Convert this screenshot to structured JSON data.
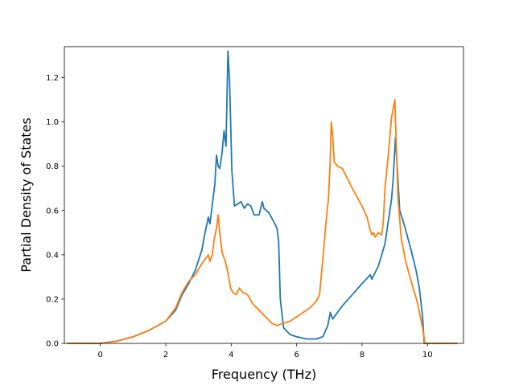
{
  "chart_data": {
    "type": "line",
    "title": "",
    "xlabel": "Frequency (THz)",
    "ylabel": "Partial Density of States",
    "xlim": [
      -1.1,
      11.1
    ],
    "ylim": [
      0,
      1.34
    ],
    "xticks": [
      0,
      2,
      4,
      6,
      8,
      10
    ],
    "xtick_labels": [
      "0",
      "2",
      "4",
      "6",
      "8",
      "10"
    ],
    "yticks": [
      0.0,
      0.2,
      0.4,
      0.6,
      0.8,
      1.0,
      1.2
    ],
    "ytick_labels": [
      "0.0",
      "0.2",
      "0.4",
      "0.6",
      "0.8",
      "1.0",
      "1.2"
    ],
    "grid": false,
    "legend": "none",
    "series": [
      {
        "color": "#1f77b4",
        "points": [
          [
            -1.0,
            0.0
          ],
          [
            0.0,
            0.0
          ],
          [
            0.5,
            0.01
          ],
          [
            1.0,
            0.03
          ],
          [
            1.5,
            0.06
          ],
          [
            2.0,
            0.1
          ],
          [
            2.3,
            0.15
          ],
          [
            2.5,
            0.22
          ],
          [
            2.7,
            0.27
          ],
          [
            2.9,
            0.33
          ],
          [
            3.1,
            0.42
          ],
          [
            3.2,
            0.5
          ],
          [
            3.3,
            0.57
          ],
          [
            3.35,
            0.54
          ],
          [
            3.45,
            0.66
          ],
          [
            3.5,
            0.72
          ],
          [
            3.55,
            0.85
          ],
          [
            3.6,
            0.8
          ],
          [
            3.65,
            0.79
          ],
          [
            3.72,
            0.86
          ],
          [
            3.78,
            0.96
          ],
          [
            3.84,
            0.89
          ],
          [
            3.9,
            1.32
          ],
          [
            3.95,
            1.18
          ],
          [
            4.02,
            0.78
          ],
          [
            4.1,
            0.62
          ],
          [
            4.2,
            0.63
          ],
          [
            4.3,
            0.64
          ],
          [
            4.4,
            0.61
          ],
          [
            4.5,
            0.63
          ],
          [
            4.6,
            0.62
          ],
          [
            4.7,
            0.58
          ],
          [
            4.85,
            0.58
          ],
          [
            4.95,
            0.64
          ],
          [
            5.0,
            0.61
          ],
          [
            5.15,
            0.59
          ],
          [
            5.3,
            0.55
          ],
          [
            5.4,
            0.52
          ],
          [
            5.45,
            0.46
          ],
          [
            5.5,
            0.2
          ],
          [
            5.6,
            0.07
          ],
          [
            5.8,
            0.04
          ],
          [
            6.0,
            0.03
          ],
          [
            6.3,
            0.02
          ],
          [
            6.6,
            0.02
          ],
          [
            6.8,
            0.03
          ],
          [
            6.95,
            0.08
          ],
          [
            7.03,
            0.14
          ],
          [
            7.1,
            0.11
          ],
          [
            7.2,
            0.13
          ],
          [
            7.4,
            0.17
          ],
          [
            7.7,
            0.22
          ],
          [
            8.0,
            0.27
          ],
          [
            8.25,
            0.31
          ],
          [
            8.3,
            0.29
          ],
          [
            8.4,
            0.32
          ],
          [
            8.5,
            0.35
          ],
          [
            8.6,
            0.4
          ],
          [
            8.7,
            0.45
          ],
          [
            8.8,
            0.55
          ],
          [
            8.9,
            0.65
          ],
          [
            8.95,
            0.74
          ],
          [
            9.02,
            0.93
          ],
          [
            9.08,
            0.78
          ],
          [
            9.15,
            0.6
          ],
          [
            9.3,
            0.53
          ],
          [
            9.5,
            0.42
          ],
          [
            9.65,
            0.33
          ],
          [
            9.75,
            0.25
          ],
          [
            9.85,
            0.12
          ],
          [
            9.9,
            0.0
          ],
          [
            10.9,
            0.0
          ]
        ]
      },
      {
        "color": "#ff7f0e",
        "points": [
          [
            -1.0,
            0.0
          ],
          [
            0.0,
            0.0
          ],
          [
            0.5,
            0.01
          ],
          [
            1.0,
            0.03
          ],
          [
            1.5,
            0.06
          ],
          [
            2.0,
            0.1
          ],
          [
            2.3,
            0.16
          ],
          [
            2.5,
            0.23
          ],
          [
            2.7,
            0.28
          ],
          [
            2.9,
            0.31
          ],
          [
            3.1,
            0.36
          ],
          [
            3.3,
            0.4
          ],
          [
            3.35,
            0.37
          ],
          [
            3.42,
            0.4
          ],
          [
            3.48,
            0.47
          ],
          [
            3.55,
            0.52
          ],
          [
            3.6,
            0.58
          ],
          [
            3.65,
            0.5
          ],
          [
            3.72,
            0.41
          ],
          [
            3.82,
            0.37
          ],
          [
            3.9,
            0.32
          ],
          [
            3.98,
            0.25
          ],
          [
            4.05,
            0.23
          ],
          [
            4.15,
            0.22
          ],
          [
            4.25,
            0.25
          ],
          [
            4.35,
            0.23
          ],
          [
            4.5,
            0.22
          ],
          [
            4.65,
            0.18
          ],
          [
            4.85,
            0.15
          ],
          [
            5.05,
            0.12
          ],
          [
            5.25,
            0.09
          ],
          [
            5.4,
            0.08
          ],
          [
            5.55,
            0.09
          ],
          [
            5.8,
            0.1
          ],
          [
            6.0,
            0.12
          ],
          [
            6.2,
            0.14
          ],
          [
            6.4,
            0.16
          ],
          [
            6.6,
            0.19
          ],
          [
            6.7,
            0.22
          ],
          [
            6.8,
            0.38
          ],
          [
            6.9,
            0.55
          ],
          [
            6.97,
            0.65
          ],
          [
            7.02,
            0.8
          ],
          [
            7.06,
            1.0
          ],
          [
            7.1,
            0.94
          ],
          [
            7.15,
            0.82
          ],
          [
            7.25,
            0.8
          ],
          [
            7.4,
            0.79
          ],
          [
            7.5,
            0.76
          ],
          [
            7.6,
            0.73
          ],
          [
            7.7,
            0.7
          ],
          [
            7.85,
            0.66
          ],
          [
            8.0,
            0.62
          ],
          [
            8.15,
            0.57
          ],
          [
            8.25,
            0.51
          ],
          [
            8.3,
            0.49
          ],
          [
            8.35,
            0.5
          ],
          [
            8.4,
            0.48
          ],
          [
            8.5,
            0.5
          ],
          [
            8.6,
            0.49
          ],
          [
            8.65,
            0.55
          ],
          [
            8.7,
            0.7
          ],
          [
            8.8,
            0.85
          ],
          [
            8.9,
            1.02
          ],
          [
            9.0,
            1.1
          ],
          [
            9.05,
            0.88
          ],
          [
            9.1,
            0.65
          ],
          [
            9.2,
            0.47
          ],
          [
            9.35,
            0.36
          ],
          [
            9.5,
            0.28
          ],
          [
            9.7,
            0.18
          ],
          [
            9.85,
            0.07
          ],
          [
            9.92,
            0.0
          ],
          [
            10.9,
            0.0
          ]
        ]
      }
    ]
  }
}
